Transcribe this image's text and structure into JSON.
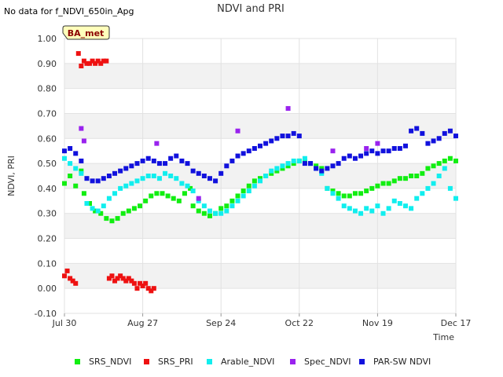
{
  "no_data_text": "No data for f_NDVI_650in_Apg",
  "site_label": "BA_met",
  "chart_data": {
    "type": "scatter",
    "title": "NDVI and PRI",
    "xlabel": "Time",
    "ylabel": "NDVI, PRI",
    "xlim": [
      0,
      140
    ],
    "ylim": [
      -0.1,
      1.0
    ],
    "yticks": [
      -0.1,
      0.0,
      0.1,
      0.2,
      0.3,
      0.4,
      0.5,
      0.6,
      0.7,
      0.8,
      0.9,
      1.0
    ],
    "ytick_labels": [
      "-0.10",
      "0.00",
      "0.10",
      "0.20",
      "0.30",
      "0.40",
      "0.50",
      "0.60",
      "0.70",
      "0.80",
      "0.90",
      "1.00"
    ],
    "xticks": [
      0,
      28,
      56,
      84,
      112,
      140
    ],
    "xtick_labels": [
      "Jul 30",
      "Aug 27",
      "Sep 24",
      "Oct 22",
      "Nov 19",
      "Dec 17"
    ],
    "legend_position": "bottom",
    "series": [
      {
        "name": "SRS_NDVI",
        "color": "#11ee11",
        "x": [
          0,
          2,
          4,
          6,
          7,
          9,
          11,
          13,
          15,
          17,
          19,
          21,
          23,
          25,
          27,
          29,
          31,
          33,
          35,
          37,
          39,
          41,
          43,
          45,
          46,
          48,
          50,
          52,
          54,
          56,
          58,
          60,
          62,
          64,
          66,
          68,
          70,
          72,
          74,
          76,
          78,
          80,
          82,
          84,
          86,
          88,
          90,
          92,
          94,
          96,
          98,
          100,
          102,
          104,
          106,
          108,
          110,
          112,
          114,
          116,
          118,
          120,
          122,
          124,
          126,
          128,
          130,
          132,
          134,
          136,
          138,
          140
        ],
        "y": [
          0.42,
          0.45,
          0.41,
          0.47,
          0.38,
          0.34,
          0.31,
          0.3,
          0.28,
          0.27,
          0.28,
          0.3,
          0.31,
          0.32,
          0.33,
          0.35,
          0.37,
          0.38,
          0.38,
          0.37,
          0.36,
          0.35,
          0.38,
          0.4,
          0.33,
          0.31,
          0.3,
          0.29,
          0.3,
          0.32,
          0.33,
          0.35,
          0.37,
          0.39,
          0.41,
          0.43,
          0.44,
          0.45,
          0.46,
          0.47,
          0.48,
          0.49,
          0.5,
          0.51,
          0.51,
          0.5,
          0.49,
          0.48,
          0.4,
          0.39,
          0.38,
          0.37,
          0.37,
          0.38,
          0.38,
          0.39,
          0.4,
          0.41,
          0.42,
          0.42,
          0.43,
          0.44,
          0.44,
          0.45,
          0.45,
          0.46,
          0.48,
          0.49,
          0.5,
          0.51,
          0.52,
          0.51
        ]
      },
      {
        "name": "SRS_PRI",
        "color": "#ee1111",
        "x": [
          0,
          1,
          2,
          3,
          4,
          5,
          6,
          7,
          8,
          9,
          10,
          11,
          12,
          13,
          14,
          15,
          16,
          17,
          18,
          19,
          20,
          21,
          22,
          23,
          24,
          25,
          26,
          27,
          28,
          29,
          30,
          31,
          32
        ],
        "y": [
          0.05,
          0.07,
          0.04,
          0.03,
          0.02,
          0.94,
          0.89,
          0.91,
          0.9,
          0.9,
          0.91,
          0.9,
          0.91,
          0.9,
          0.91,
          0.91,
          0.04,
          0.05,
          0.03,
          0.04,
          0.05,
          0.04,
          0.03,
          0.04,
          0.03,
          0.02,
          0.0,
          0.02,
          0.01,
          0.02,
          0.0,
          -0.01,
          0.0
        ]
      },
      {
        "name": "Arable_NDVI",
        "color": "#11eeee",
        "x": [
          0,
          2,
          4,
          6,
          8,
          10,
          12,
          14,
          16,
          18,
          20,
          22,
          24,
          26,
          28,
          30,
          32,
          34,
          36,
          38,
          40,
          42,
          44,
          46,
          48,
          50,
          52,
          54,
          56,
          58,
          60,
          62,
          64,
          66,
          68,
          70,
          72,
          74,
          76,
          78,
          80,
          82,
          84,
          86,
          88,
          90,
          92,
          94,
          96,
          98,
          100,
          102,
          104,
          106,
          108,
          110,
          112,
          114,
          116,
          118,
          120,
          122,
          124,
          126,
          128,
          130,
          132,
          134,
          136,
          138,
          140
        ],
        "y": [
          0.52,
          0.5,
          0.48,
          0.46,
          0.34,
          0.32,
          0.31,
          0.33,
          0.36,
          0.38,
          0.4,
          0.41,
          0.42,
          0.43,
          0.44,
          0.45,
          0.45,
          0.44,
          0.46,
          0.45,
          0.44,
          0.42,
          0.41,
          0.39,
          0.35,
          0.33,
          0.31,
          0.3,
          0.3,
          0.31,
          0.33,
          0.35,
          0.37,
          0.39,
          0.41,
          0.43,
          0.45,
          0.47,
          0.48,
          0.49,
          0.5,
          0.51,
          0.51,
          0.52,
          0.5,
          0.48,
          0.46,
          0.4,
          0.38,
          0.36,
          0.33,
          0.32,
          0.31,
          0.3,
          0.32,
          0.31,
          0.33,
          0.3,
          0.32,
          0.35,
          0.34,
          0.33,
          0.32,
          0.36,
          0.38,
          0.4,
          0.42,
          0.45,
          0.48,
          0.4,
          0.36
        ]
      },
      {
        "name": "Spec_NDVI",
        "color": "#9922ee",
        "x": [
          6,
          7,
          33,
          48,
          62,
          80,
          96,
          108,
          112
        ],
        "y": [
          0.64,
          0.59,
          0.58,
          0.36,
          0.63,
          0.72,
          0.55,
          0.56,
          0.58
        ]
      },
      {
        "name": "PAR-SW NDVI",
        "color": "#1111dd",
        "x": [
          0,
          2,
          4,
          6,
          8,
          10,
          12,
          14,
          16,
          18,
          20,
          22,
          24,
          26,
          28,
          30,
          32,
          34,
          36,
          38,
          40,
          42,
          44,
          46,
          48,
          50,
          52,
          54,
          56,
          58,
          60,
          62,
          64,
          66,
          68,
          70,
          72,
          74,
          76,
          78,
          80,
          82,
          84,
          86,
          88,
          90,
          92,
          94,
          96,
          98,
          100,
          102,
          104,
          106,
          108,
          110,
          112,
          114,
          116,
          118,
          120,
          122,
          124,
          126,
          128,
          130,
          132,
          134,
          136,
          138,
          140
        ],
        "y": [
          0.55,
          0.56,
          0.54,
          0.51,
          0.44,
          0.43,
          0.43,
          0.44,
          0.45,
          0.46,
          0.47,
          0.48,
          0.49,
          0.5,
          0.51,
          0.52,
          0.51,
          0.5,
          0.5,
          0.52,
          0.53,
          0.51,
          0.5,
          0.47,
          0.46,
          0.45,
          0.44,
          0.43,
          0.46,
          0.49,
          0.51,
          0.53,
          0.54,
          0.55,
          0.56,
          0.57,
          0.58,
          0.59,
          0.6,
          0.61,
          0.61,
          0.62,
          0.61,
          0.5,
          0.5,
          0.48,
          0.47,
          0.48,
          0.49,
          0.5,
          0.52,
          0.53,
          0.52,
          0.53,
          0.54,
          0.55,
          0.54,
          0.55,
          0.55,
          0.56,
          0.56,
          0.57,
          0.63,
          0.64,
          0.62,
          0.58,
          0.59,
          0.6,
          0.62,
          0.63,
          0.61
        ]
      }
    ]
  }
}
